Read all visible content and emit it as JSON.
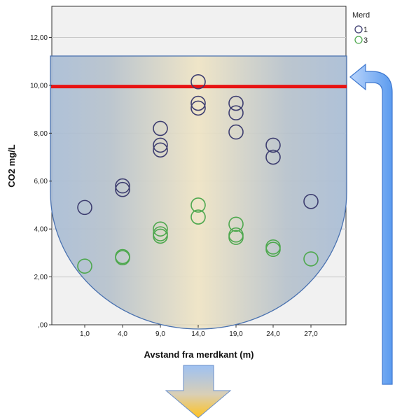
{
  "chart_data": {
    "type": "scatter",
    "title": "",
    "xlabel": "Avstand fra merdkant (m)",
    "ylabel": "CO2 mg/L",
    "x_ticks": [
      1,
      4,
      9,
      14,
      19,
      24,
      27
    ],
    "x_tick_labels": [
      "1,0",
      "4,0",
      "9,0",
      "14,0",
      "19,0",
      "24,0",
      "27,0"
    ],
    "y_ticks": [
      0,
      2,
      4,
      6,
      8,
      10,
      12
    ],
    "y_tick_labels": [
      ",00",
      "2,00",
      "4,00",
      "6,00",
      "8,00",
      "10,00",
      "12,00"
    ],
    "ylim": [
      0,
      13.3
    ],
    "grid": true,
    "legend": {
      "title": "Merd",
      "position": "top-right"
    },
    "reference_line": {
      "y": 9.95,
      "color": "#e81313"
    },
    "series": [
      {
        "name": "1",
        "color": "#3e3e70",
        "points": [
          [
            1,
            4.9
          ],
          [
            4,
            5.8
          ],
          [
            4,
            5.65
          ],
          [
            9,
            8.2
          ],
          [
            9,
            7.5
          ],
          [
            9,
            7.3
          ],
          [
            14,
            10.15
          ],
          [
            14,
            9.25
          ],
          [
            14,
            9.05
          ],
          [
            19,
            9.25
          ],
          [
            19,
            8.85
          ],
          [
            19,
            8.05
          ],
          [
            24,
            7.5
          ],
          [
            24,
            7.0
          ],
          [
            27,
            5.15
          ]
        ]
      },
      {
        "name": "3",
        "color": "#4ea84e",
        "points": [
          [
            1,
            2.45
          ],
          [
            4,
            2.85
          ],
          [
            4,
            2.8
          ],
          [
            9,
            4.0
          ],
          [
            9,
            3.8
          ],
          [
            9,
            3.7
          ],
          [
            14,
            5.0
          ],
          [
            14,
            4.5
          ],
          [
            19,
            4.2
          ],
          [
            19,
            3.75
          ],
          [
            19,
            3.65
          ],
          [
            24,
            3.25
          ],
          [
            24,
            3.15
          ],
          [
            27,
            2.75
          ]
        ]
      }
    ]
  }
}
